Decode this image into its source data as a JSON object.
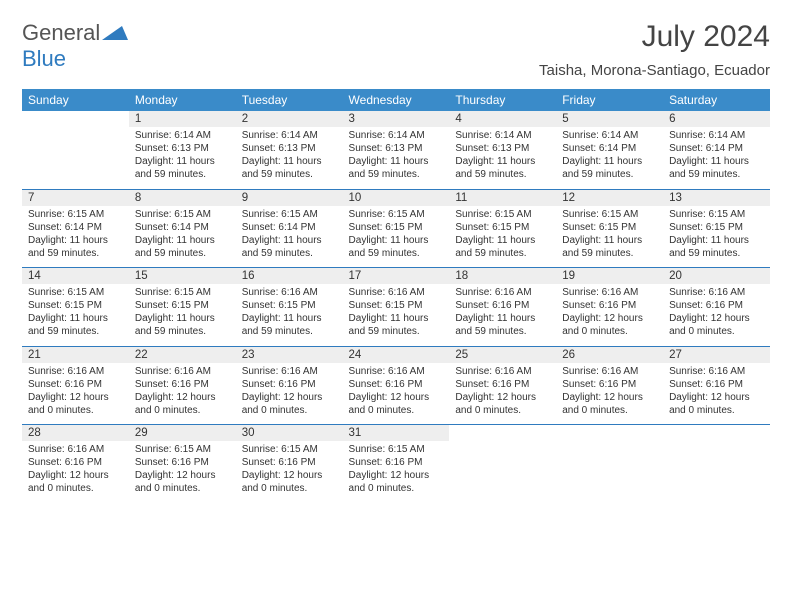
{
  "logo": {
    "part1": "General",
    "part2": "Blue"
  },
  "title": "July 2024",
  "location": "Taisha, Morona-Santiago, Ecuador",
  "colors": {
    "header_bg": "#3a8bc9",
    "header_text": "#ffffff",
    "daynum_bg": "#eeeeee",
    "divider": "#2f7bbf",
    "text": "#333333",
    "accent": "#2f7bbf"
  },
  "day_headers": [
    "Sunday",
    "Monday",
    "Tuesday",
    "Wednesday",
    "Thursday",
    "Friday",
    "Saturday"
  ],
  "weeks": [
    {
      "nums": [
        "",
        "1",
        "2",
        "3",
        "4",
        "5",
        "6"
      ],
      "cells": [
        {
          "empty": true
        },
        {
          "sunrise": "6:14 AM",
          "sunset": "6:13 PM",
          "daylight": "11 hours and 59 minutes."
        },
        {
          "sunrise": "6:14 AM",
          "sunset": "6:13 PM",
          "daylight": "11 hours and 59 minutes."
        },
        {
          "sunrise": "6:14 AM",
          "sunset": "6:13 PM",
          "daylight": "11 hours and 59 minutes."
        },
        {
          "sunrise": "6:14 AM",
          "sunset": "6:13 PM",
          "daylight": "11 hours and 59 minutes."
        },
        {
          "sunrise": "6:14 AM",
          "sunset": "6:14 PM",
          "daylight": "11 hours and 59 minutes."
        },
        {
          "sunrise": "6:14 AM",
          "sunset": "6:14 PM",
          "daylight": "11 hours and 59 minutes."
        }
      ]
    },
    {
      "nums": [
        "7",
        "8",
        "9",
        "10",
        "11",
        "12",
        "13"
      ],
      "cells": [
        {
          "sunrise": "6:15 AM",
          "sunset": "6:14 PM",
          "daylight": "11 hours and 59 minutes."
        },
        {
          "sunrise": "6:15 AM",
          "sunset": "6:14 PM",
          "daylight": "11 hours and 59 minutes."
        },
        {
          "sunrise": "6:15 AM",
          "sunset": "6:14 PM",
          "daylight": "11 hours and 59 minutes."
        },
        {
          "sunrise": "6:15 AM",
          "sunset": "6:15 PM",
          "daylight": "11 hours and 59 minutes."
        },
        {
          "sunrise": "6:15 AM",
          "sunset": "6:15 PM",
          "daylight": "11 hours and 59 minutes."
        },
        {
          "sunrise": "6:15 AM",
          "sunset": "6:15 PM",
          "daylight": "11 hours and 59 minutes."
        },
        {
          "sunrise": "6:15 AM",
          "sunset": "6:15 PM",
          "daylight": "11 hours and 59 minutes."
        }
      ]
    },
    {
      "nums": [
        "14",
        "15",
        "16",
        "17",
        "18",
        "19",
        "20"
      ],
      "cells": [
        {
          "sunrise": "6:15 AM",
          "sunset": "6:15 PM",
          "daylight": "11 hours and 59 minutes."
        },
        {
          "sunrise": "6:15 AM",
          "sunset": "6:15 PM",
          "daylight": "11 hours and 59 minutes."
        },
        {
          "sunrise": "6:16 AM",
          "sunset": "6:15 PM",
          "daylight": "11 hours and 59 minutes."
        },
        {
          "sunrise": "6:16 AM",
          "sunset": "6:15 PM",
          "daylight": "11 hours and 59 minutes."
        },
        {
          "sunrise": "6:16 AM",
          "sunset": "6:16 PM",
          "daylight": "11 hours and 59 minutes."
        },
        {
          "sunrise": "6:16 AM",
          "sunset": "6:16 PM",
          "daylight": "12 hours and 0 minutes."
        },
        {
          "sunrise": "6:16 AM",
          "sunset": "6:16 PM",
          "daylight": "12 hours and 0 minutes."
        }
      ]
    },
    {
      "nums": [
        "21",
        "22",
        "23",
        "24",
        "25",
        "26",
        "27"
      ],
      "cells": [
        {
          "sunrise": "6:16 AM",
          "sunset": "6:16 PM",
          "daylight": "12 hours and 0 minutes."
        },
        {
          "sunrise": "6:16 AM",
          "sunset": "6:16 PM",
          "daylight": "12 hours and 0 minutes."
        },
        {
          "sunrise": "6:16 AM",
          "sunset": "6:16 PM",
          "daylight": "12 hours and 0 minutes."
        },
        {
          "sunrise": "6:16 AM",
          "sunset": "6:16 PM",
          "daylight": "12 hours and 0 minutes."
        },
        {
          "sunrise": "6:16 AM",
          "sunset": "6:16 PM",
          "daylight": "12 hours and 0 minutes."
        },
        {
          "sunrise": "6:16 AM",
          "sunset": "6:16 PM",
          "daylight": "12 hours and 0 minutes."
        },
        {
          "sunrise": "6:16 AM",
          "sunset": "6:16 PM",
          "daylight": "12 hours and 0 minutes."
        }
      ]
    },
    {
      "nums": [
        "28",
        "29",
        "30",
        "31",
        "",
        "",
        ""
      ],
      "cells": [
        {
          "sunrise": "6:16 AM",
          "sunset": "6:16 PM",
          "daylight": "12 hours and 0 minutes."
        },
        {
          "sunrise": "6:15 AM",
          "sunset": "6:16 PM",
          "daylight": "12 hours and 0 minutes."
        },
        {
          "sunrise": "6:15 AM",
          "sunset": "6:16 PM",
          "daylight": "12 hours and 0 minutes."
        },
        {
          "sunrise": "6:15 AM",
          "sunset": "6:16 PM",
          "daylight": "12 hours and 0 minutes."
        },
        {
          "empty": true
        },
        {
          "empty": true
        },
        {
          "empty": true
        }
      ]
    }
  ],
  "labels": {
    "sunrise": "Sunrise: ",
    "sunset": "Sunset: ",
    "daylight": "Daylight: "
  }
}
